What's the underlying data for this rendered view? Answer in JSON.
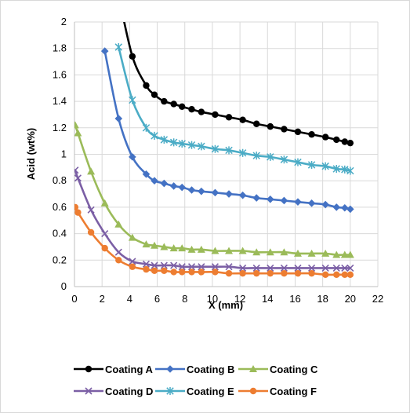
{
  "chart_data": {
    "type": "line",
    "title": "",
    "xlabel": "X (mm)",
    "ylabel": "Acid (wt%)",
    "xlim": [
      0,
      22
    ],
    "ylim": [
      0,
      2
    ],
    "xticks": [
      0,
      2,
      4,
      6,
      8,
      10,
      12,
      14,
      16,
      18,
      20,
      22
    ],
    "yticks": [
      0,
      0.2,
      0.4,
      0.6,
      0.8,
      1,
      1.2,
      1.4,
      1.6,
      1.8,
      2
    ],
    "ytick_labels": [
      "0",
      "0.2",
      "0.4",
      "0.6",
      "0.8",
      "1",
      "1.2",
      "1.4",
      "1.6",
      "1.8",
      "2"
    ],
    "grid": "both",
    "legend_position": "bottom",
    "series": [
      {
        "name": "Coating A",
        "color": "#000000",
        "marker": "circle",
        "x": [
          3.2,
          4.2,
          5.2,
          5.8,
          6.5,
          7.2,
          7.8,
          8.5,
          9.2,
          10.2,
          11.2,
          12.2,
          13.2,
          14.2,
          15.2,
          16.2,
          17.2,
          18.2,
          19.0,
          19.6,
          20.0
        ],
        "y": [
          2.2,
          1.74,
          1.52,
          1.45,
          1.4,
          1.38,
          1.36,
          1.34,
          1.32,
          1.3,
          1.28,
          1.26,
          1.23,
          1.21,
          1.19,
          1.17,
          1.15,
          1.13,
          1.11,
          1.095,
          1.085
        ]
      },
      {
        "name": "Coating B",
        "color": "#4472C4",
        "marker": "diamond",
        "x": [
          2.2,
          3.2,
          4.2,
          5.2,
          5.8,
          6.5,
          7.2,
          7.8,
          8.5,
          9.2,
          10.2,
          11.2,
          12.2,
          13.2,
          14.2,
          15.2,
          16.2,
          17.2,
          18.2,
          19.0,
          19.6,
          20.0
        ],
        "y": [
          1.78,
          1.27,
          0.98,
          0.85,
          0.8,
          0.78,
          0.76,
          0.75,
          0.73,
          0.72,
          0.71,
          0.7,
          0.69,
          0.67,
          0.66,
          0.65,
          0.64,
          0.63,
          0.62,
          0.6,
          0.595,
          0.585
        ]
      },
      {
        "name": "Coating C",
        "color": "#9BBB59",
        "marker": "triangle",
        "x": [
          0.05,
          0.25,
          1.2,
          2.2,
          3.2,
          4.2,
          5.2,
          5.8,
          6.5,
          7.2,
          7.8,
          8.5,
          9.2,
          10.2,
          11.2,
          12.2,
          13.2,
          14.2,
          15.2,
          16.2,
          17.2,
          18.2,
          19.0,
          19.6,
          20.0
        ],
        "y": [
          1.22,
          1.16,
          0.87,
          0.63,
          0.47,
          0.37,
          0.32,
          0.31,
          0.3,
          0.29,
          0.29,
          0.28,
          0.28,
          0.27,
          0.27,
          0.27,
          0.26,
          0.26,
          0.26,
          0.25,
          0.25,
          0.25,
          0.24,
          0.24,
          0.24
        ]
      },
      {
        "name": "Coating D",
        "color": "#7B5FA5",
        "marker": "x",
        "x": [
          0.05,
          0.25,
          1.2,
          2.2,
          3.2,
          4.2,
          5.2,
          5.8,
          6.5,
          7.2,
          7.8,
          8.5,
          9.2,
          10.2,
          11.2,
          12.2,
          13.2,
          14.2,
          15.2,
          16.2,
          17.2,
          18.2,
          19.0,
          19.6,
          20.0
        ],
        "y": [
          0.88,
          0.82,
          0.58,
          0.4,
          0.26,
          0.19,
          0.17,
          0.16,
          0.16,
          0.16,
          0.15,
          0.15,
          0.15,
          0.15,
          0.15,
          0.14,
          0.14,
          0.14,
          0.14,
          0.14,
          0.14,
          0.14,
          0.14,
          0.14,
          0.14
        ]
      },
      {
        "name": "Coating E",
        "color": "#4BACC6",
        "marker": "asterisk",
        "x": [
          3.2,
          4.2,
          5.2,
          5.8,
          6.5,
          7.2,
          7.8,
          8.5,
          9.2,
          10.2,
          11.2,
          12.2,
          13.2,
          14.2,
          15.2,
          16.2,
          17.2,
          18.2,
          19.0,
          19.6,
          20.0
        ],
        "y": [
          1.81,
          1.41,
          1.2,
          1.14,
          1.11,
          1.09,
          1.08,
          1.07,
          1.06,
          1.04,
          1.03,
          1.01,
          0.99,
          0.98,
          0.96,
          0.94,
          0.92,
          0.91,
          0.89,
          0.885,
          0.875
        ]
      },
      {
        "name": "Coating F",
        "color": "#ED7D31",
        "marker": "circle",
        "x": [
          0.05,
          0.25,
          1.2,
          2.2,
          3.2,
          4.2,
          5.2,
          5.8,
          6.5,
          7.2,
          7.8,
          8.5,
          9.2,
          10.2,
          11.2,
          12.2,
          13.2,
          14.2,
          15.2,
          16.2,
          17.2,
          18.2,
          19.0,
          19.6,
          20.0
        ],
        "y": [
          0.6,
          0.56,
          0.41,
          0.29,
          0.2,
          0.15,
          0.13,
          0.12,
          0.12,
          0.11,
          0.11,
          0.11,
          0.11,
          0.11,
          0.1,
          0.1,
          0.1,
          0.1,
          0.1,
          0.1,
          0.1,
          0.09,
          0.09,
          0.09,
          0.09
        ]
      }
    ]
  }
}
